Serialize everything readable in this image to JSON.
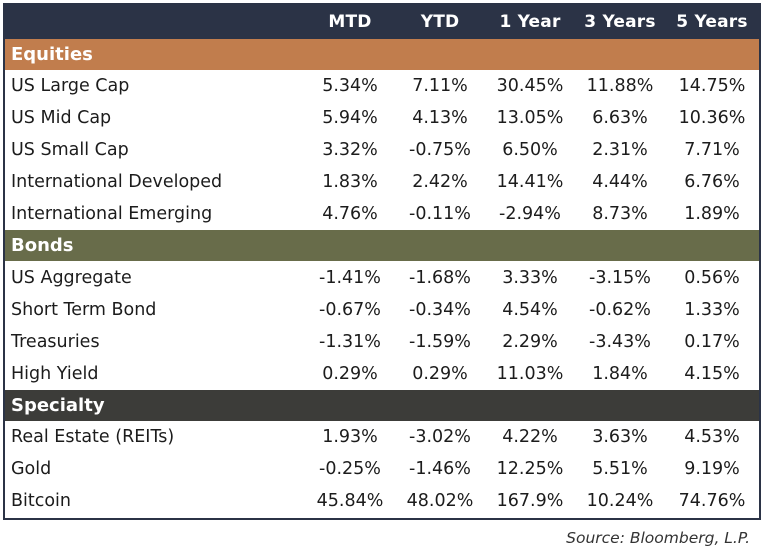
{
  "headers": [
    "",
    "MTD",
    "YTD",
    "1 Year",
    "3 Years",
    "5 Years"
  ],
  "sections": [
    {
      "title": "Equities",
      "rows": [
        {
          "label": "US Large Cap",
          "values": [
            "5.34%",
            "7.11%",
            "30.45%",
            "11.88%",
            "14.75%"
          ]
        },
        {
          "label": "US Mid Cap",
          "values": [
            "5.94%",
            "4.13%",
            "13.05%",
            "6.63%",
            "10.36%"
          ]
        },
        {
          "label": "US Small Cap",
          "values": [
            "3.32%",
            "-0.75%",
            "6.50%",
            "2.31%",
            "7.71%"
          ]
        },
        {
          "label": "International Developed",
          "values": [
            "1.83%",
            "2.42%",
            "14.41%",
            "4.44%",
            "6.76%"
          ]
        },
        {
          "label": "International Emerging",
          "values": [
            "4.76%",
            "-0.11%",
            "-2.94%",
            "8.73%",
            "1.89%"
          ]
        }
      ]
    },
    {
      "title": "Bonds",
      "rows": [
        {
          "label": "US Aggregate",
          "values": [
            "-1.41%",
            "-1.68%",
            "3.33%",
            "-3.15%",
            "0.56%"
          ]
        },
        {
          "label": "Short Term Bond",
          "values": [
            "-0.67%",
            "-0.34%",
            "4.54%",
            "-0.62%",
            "1.33%"
          ]
        },
        {
          "label": "Treasuries",
          "values": [
            "-1.31%",
            "-1.59%",
            "2.29%",
            "-3.43%",
            "0.17%"
          ]
        },
        {
          "label": "High Yield",
          "values": [
            "0.29%",
            "0.29%",
            "11.03%",
            "1.84%",
            "4.15%"
          ]
        }
      ]
    },
    {
      "title": "Specialty",
      "rows": [
        {
          "label": "Real Estate (REITs)",
          "values": [
            "1.93%",
            "-3.02%",
            "4.22%",
            "3.63%",
            "4.53%"
          ]
        },
        {
          "label": "Gold",
          "values": [
            "-0.25%",
            "-1.46%",
            "12.25%",
            "5.51%",
            "9.19%"
          ]
        },
        {
          "label": "Bitcoin",
          "values": [
            "45.84%",
            "48.02%",
            "167.9%",
            "10.24%",
            "74.76%"
          ]
        }
      ]
    }
  ],
  "source": "Source: Bloomberg, L.P.",
  "colors": {
    "header": "#2b3346",
    "equities": "#c17d4d",
    "bonds": "#686c4a",
    "specialty": "#3c3c39"
  }
}
